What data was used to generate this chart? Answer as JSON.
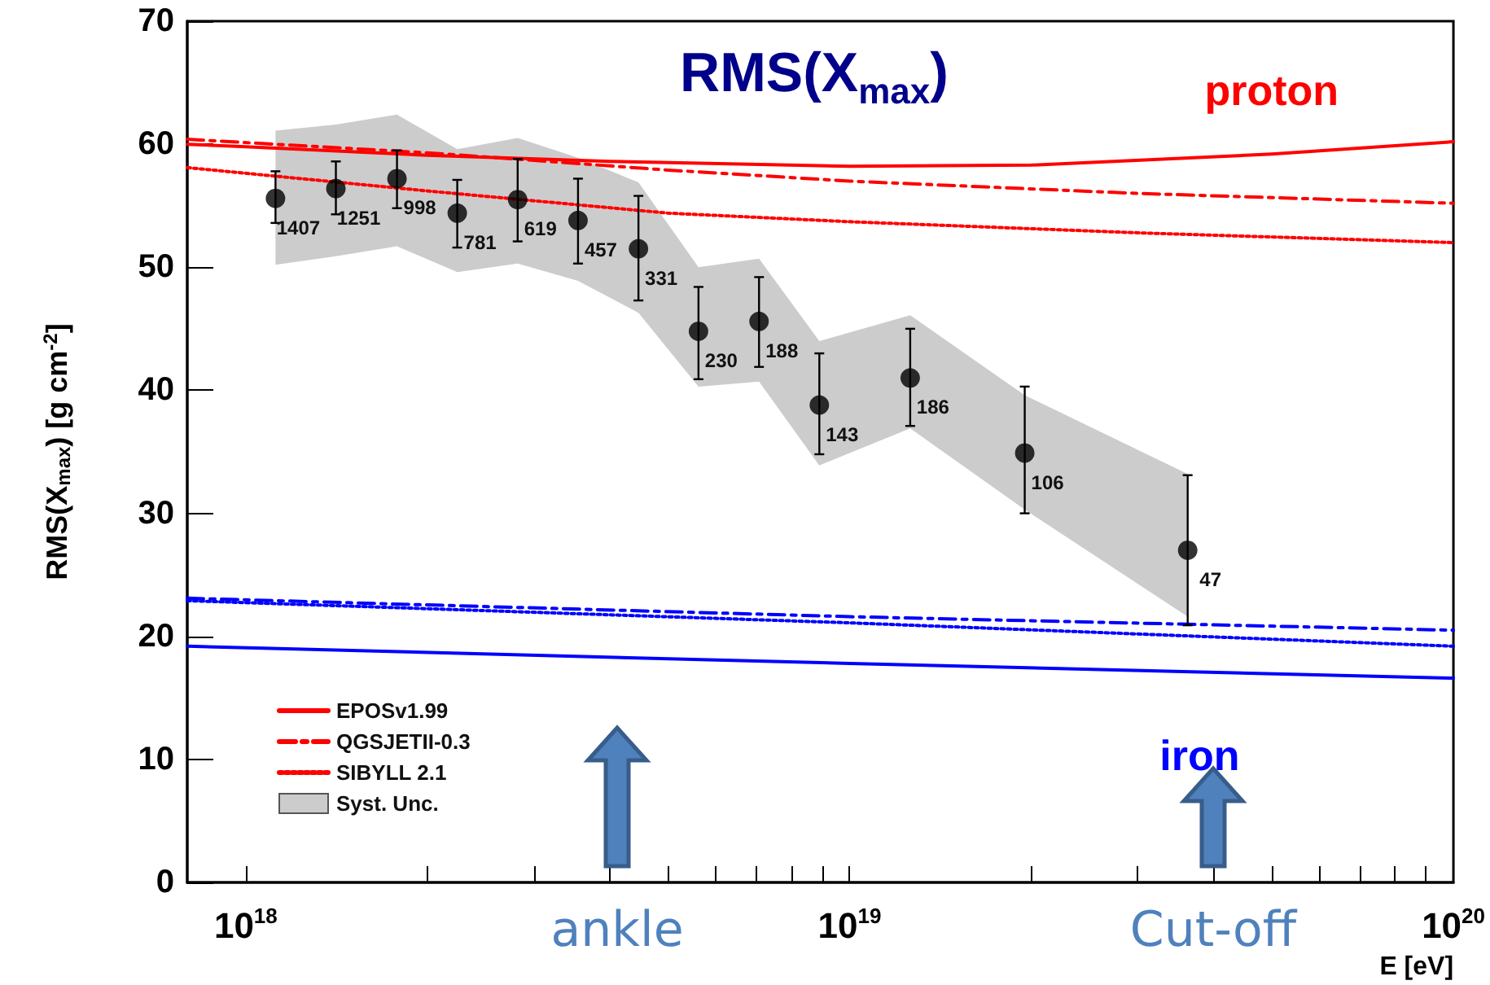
{
  "chart_data": {
    "type": "line",
    "title": "RMS(X$_{max}$)",
    "ylabel": "RMS(X$_{max}$) [g cm$^{-2}$]",
    "xlabel": "E [eV]",
    "log": "x",
    "xlim": [
      8e+17,
      1e+20
    ],
    "xticks": [
      {
        "value": 1e+18,
        "label": "10$^{18}$"
      },
      {
        "value": 2e+18,
        "label": null
      },
      {
        "value": 3e+18,
        "label": null
      },
      {
        "value": 4e+18,
        "label": null
      },
      {
        "value": 5e+18,
        "label": null
      },
      {
        "value": 6e+18,
        "label": null
      },
      {
        "value": 7e+18,
        "label": null
      },
      {
        "value": 8e+18,
        "label": null
      },
      {
        "value": 9e+18,
        "label": null
      },
      {
        "value": 1e+19,
        "label": "10$^{19}$"
      },
      {
        "value": 2e+19,
        "label": null
      },
      {
        "value": 3e+19,
        "label": null
      },
      {
        "value": 4e+19,
        "label": null
      },
      {
        "value": 5e+19,
        "label": null
      },
      {
        "value": 6e+19,
        "label": null
      },
      {
        "value": 7e+19,
        "label": null
      },
      {
        "value": 8e+19,
        "label": null
      },
      {
        "value": 9e+19,
        "label": null
      },
      {
        "value": 1e+20,
        "label": "10$^{20}$"
      }
    ],
    "ylim": [
      0,
      70
    ],
    "yticks": [
      0,
      10,
      20,
      30,
      40,
      50,
      60,
      70
    ],
    "grid": false,
    "legend": "bottom left",
    "series": [
      {
        "name": "EPOSv1.99",
        "color": "#ff0000",
        "line_style": "solid",
        "x": [
          8e+17,
          1e+18,
          2e+18,
          4e+18,
          1e+19,
          2e+19,
          5e+19,
          1e+20
        ],
        "values": [
          60.0,
          59.8,
          59.1,
          58.6,
          58.2,
          58.3,
          59.2,
          60.2
        ]
      },
      {
        "name": "QGSJETII-0.3",
        "color": "#ff0000",
        "line_style": "dashdot",
        "x": [
          8e+17,
          2e+18,
          5e+18,
          1e+19,
          3e+19,
          1e+20
        ],
        "values": [
          60.4,
          59.3,
          57.9,
          57.0,
          56.0,
          55.2
        ]
      },
      {
        "name": "SIBYLL 2.1",
        "color": "#ff0000",
        "line_style": "dotted",
        "x": [
          8e+17,
          2e+18,
          5e+18,
          1e+19,
          3e+19,
          1e+20
        ],
        "values": [
          58.1,
          56.2,
          54.4,
          53.7,
          52.8,
          52.0
        ]
      },
      {
        "color": "#0000ff",
        "line_style": "solid",
        "x": [
          8e+17,
          1e+19,
          3.8e+19,
          1e+20
        ],
        "values": [
          19.2,
          17.8,
          17.1,
          16.6
        ]
      },
      {
        "color": "#0000ff",
        "line_style": "dashdot",
        "x": [
          8e+17,
          1e+19,
          1e+20
        ],
        "values": [
          23.1,
          21.6,
          20.5
        ]
      },
      {
        "color": "#0000ff",
        "line_style": "dotted",
        "x": [
          8e+17,
          1e+19,
          1e+20
        ],
        "values": [
          22.9,
          21.1,
          19.2
        ]
      },
      {
        "type": "area",
        "name": "Syst. Unc.",
        "color": "#cccccc",
        "x": [
          1.12e+18,
          1.41e+18,
          1.78e+18,
          2.24e+18,
          2.82e+18,
          3.55e+18,
          4.47e+18,
          5.62e+18,
          7.08e+18,
          8.91e+18,
          1.26e+19,
          1.95e+19,
          3.63e+19
        ],
        "values": [
          null,
          null,
          null,
          null,
          null,
          null,
          null,
          null,
          null,
          null,
          null,
          null,
          null
        ],
        "lower": [
          50.2,
          50.9,
          51.7,
          49.6,
          50.3,
          48.9,
          46.3,
          40.3,
          40.7,
          33.9,
          36.9,
          30.3,
          21.6
        ],
        "upper": [
          61.1,
          61.6,
          62.4,
          59.6,
          60.5,
          58.9,
          56.9,
          50.0,
          50.7,
          44.0,
          46.1,
          39.6,
          33.2
        ]
      },
      {
        "type": "scatter",
        "color": "#000000",
        "marker": "circle",
        "x": [
          1.12e+18,
          1.41e+18,
          1.78e+18,
          2.24e+18,
          2.82e+18,
          3.55e+18,
          4.47e+18,
          5.62e+18,
          7.08e+18,
          8.91e+18,
          1.26e+19,
          1.95e+19,
          3.63e+19
        ],
        "values": [
          55.6,
          56.4,
          57.2,
          54.4,
          55.5,
          53.8,
          51.5,
          44.8,
          45.6,
          38.8,
          41.0,
          34.9,
          27.0
        ],
        "errors": [
          [
            53.6,
            57.8
          ],
          [
            54.3,
            58.6
          ],
          [
            54.8,
            59.5
          ],
          [
            51.6,
            57.1
          ],
          [
            52.1,
            58.8
          ],
          [
            50.3,
            57.2
          ],
          [
            47.3,
            55.8
          ],
          [
            40.9,
            48.4
          ],
          [
            41.9,
            49.2
          ],
          [
            34.8,
            43.0
          ],
          [
            37.1,
            45.0
          ],
          [
            30.0,
            40.3
          ],
          [
            20.9,
            33.1
          ]
        ]
      }
    ],
    "annotations": [
      {
        "text": "proton",
        "x": 5e+19,
        "y": 59.2
      },
      {
        "text": "iron",
        "x": 3.8e+19,
        "y": 17.1
      },
      {
        "text": "1407",
        "x": 1.12e+18,
        "y": 55.6
      },
      {
        "text": "1251",
        "x": 1.41e+18,
        "y": 56.4
      },
      {
        "text": "998",
        "x": 1.78e+18,
        "y": 57.2
      },
      {
        "text": "781",
        "x": 2.24e+18,
        "y": 54.4
      },
      {
        "text": "619",
        "x": 2.82e+18,
        "y": 55.5
      },
      {
        "text": "457",
        "x": 3.55e+18,
        "y": 53.8
      },
      {
        "text": "331",
        "x": 4.47e+18,
        "y": 51.5
      },
      {
        "text": "230",
        "x": 5.62e+18,
        "y": 44.8
      },
      {
        "text": "188",
        "x": 7.08e+18,
        "y": 45.6
      },
      {
        "text": "143",
        "x": 8.91e+18,
        "y": 38.8
      },
      {
        "text": "186",
        "x": 1.26e+19,
        "y": 41.0
      },
      {
        "text": "106",
        "x": 1.95e+19,
        "y": 34.9
      },
      {
        "text": "47",
        "x": 3.63e+19,
        "y": 27.0
      },
      "ankle",
      "Cut-off"
    ]
  }
}
